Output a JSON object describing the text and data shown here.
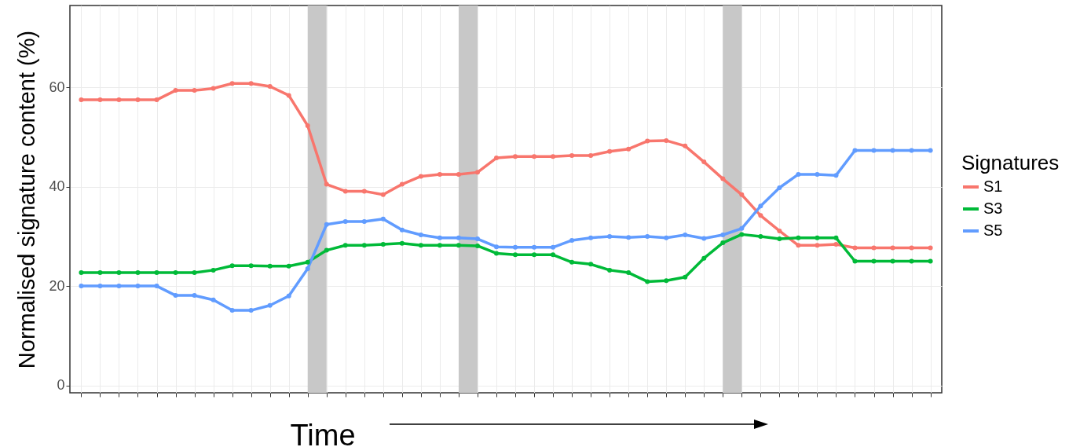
{
  "chart_data": {
    "type": "line",
    "xlabel": "Time",
    "ylabel": "Normalised signature content (%)",
    "legend_title": "Signatures",
    "categories": [
      null,
      null,
      null,
      null,
      null,
      null,
      null,
      null,
      null,
      null,
      null,
      null,
      null,
      null,
      null,
      null,
      null,
      null,
      null,
      null,
      null,
      null,
      null,
      null,
      null,
      null,
      null,
      null,
      null,
      null,
      null,
      null,
      null,
      null,
      null,
      null,
      null,
      null,
      null,
      null,
      null,
      null,
      null,
      null,
      null,
      null
    ],
    "series": [
      {
        "name": "S1",
        "color": "#f8766d",
        "values": [
          57.5,
          57.5,
          57.5,
          57.5,
          57.5,
          59.4,
          59.4,
          59.8,
          60.8,
          60.8,
          60.2,
          58.4,
          52.3,
          40.5,
          39.1,
          39.1,
          38.4,
          40.5,
          42.1,
          42.5,
          42.5,
          42.9,
          45.8,
          46.1,
          46.1,
          46.1,
          46.3,
          46.3,
          47.1,
          47.6,
          49.2,
          49.3,
          48.2,
          45.0,
          41.6,
          38.4,
          34.2,
          31.1,
          28.2,
          28.2,
          28.4,
          27.7,
          27.7,
          27.7,
          27.7,
          27.7
        ]
      },
      {
        "name": "S3",
        "color": "#00ba38",
        "values": [
          22.7,
          22.7,
          22.7,
          22.7,
          22.7,
          22.7,
          22.7,
          23.2,
          24.1,
          24.1,
          24.0,
          24.0,
          24.8,
          27.2,
          28.2,
          28.2,
          28.4,
          28.6,
          28.2,
          28.2,
          28.2,
          28.1,
          26.6,
          26.3,
          26.3,
          26.3,
          24.8,
          24.4,
          23.2,
          22.7,
          20.9,
          21.1,
          21.8,
          25.6,
          28.7,
          30.4,
          30.0,
          29.5,
          29.7,
          29.7,
          29.7,
          25.0,
          25.0,
          25.0,
          25.0,
          25.0
        ]
      },
      {
        "name": "S5",
        "color": "#619cff",
        "values": [
          20.0,
          20.0,
          20.0,
          20.0,
          20.0,
          18.1,
          18.1,
          17.2,
          15.1,
          15.1,
          16.1,
          18.0,
          23.5,
          32.4,
          33.0,
          33.0,
          33.5,
          31.3,
          30.3,
          29.7,
          29.7,
          29.5,
          27.9,
          27.8,
          27.8,
          27.8,
          29.2,
          29.7,
          30.0,
          29.8,
          30.0,
          29.7,
          30.3,
          29.6,
          30.3,
          31.6,
          36.1,
          39.8,
          42.5,
          42.5,
          42.3,
          47.3,
          47.3,
          47.3,
          47.3,
          47.3
        ]
      }
    ],
    "ylim": [
      -1.5,
      76.5
    ],
    "yticks": [
      0,
      20,
      40,
      60
    ],
    "grid": true,
    "legend": "right",
    "marker": "circle",
    "line_style": "solid"
  }
}
